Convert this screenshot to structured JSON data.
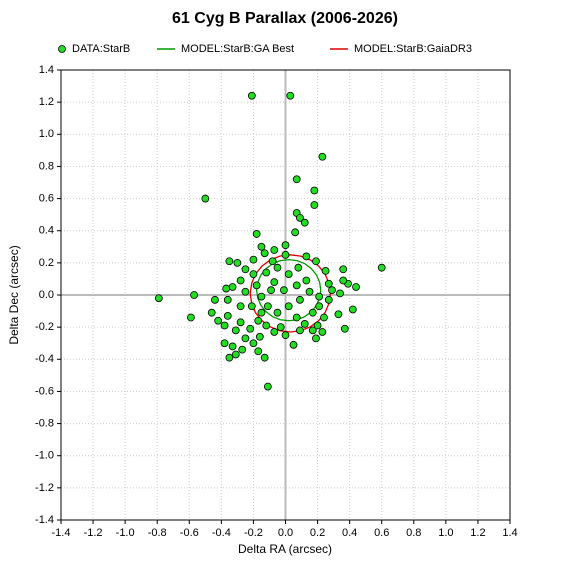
{
  "chart_data": {
    "type": "scatter",
    "title": "61 Cyg B Parallax (2006-2026)",
    "x_label": "Delta RA (arcsec)",
    "y_label": "Delta Dec (arcsec)",
    "xlim": [
      -1.4,
      1.4
    ],
    "ylim": [
      -1.4,
      1.4
    ],
    "xticks": [
      -1.4,
      -1.2,
      {
        "value": -1.0,
        "label": "-1.0"
      },
      -0.8,
      -0.6,
      -0.4,
      -0.2,
      {
        "value": 0.0,
        "label": "0.0"
      },
      0.2,
      0.4,
      0.6,
      0.8,
      {
        "value": 1.0,
        "label": "1.0"
      },
      1.2,
      1.4
    ],
    "yticks": [
      -1.4,
      -1.2,
      {
        "value": -1.0,
        "label": "-1.0"
      },
      -0.8,
      -0.6,
      -0.4,
      -0.2,
      {
        "value": 0.0,
        "label": "0.0"
      },
      0.2,
      0.4,
      0.6,
      0.8,
      {
        "value": 1.0,
        "label": "1.0"
      },
      1.2,
      1.4
    ],
    "grid": true,
    "legend": "top",
    "series": [
      {
        "name": "DATA:StarB",
        "type": "scatter",
        "color": "#22dd22",
        "x": [
          -0.21,
          0.03,
          0.23,
          0.07,
          0.18,
          -0.5,
          0.18,
          0.07,
          0.09,
          0.12,
          0.06,
          -0.18,
          -0.35,
          -0.3,
          0.6,
          0.36,
          -0.79,
          -0.57,
          -0.59,
          -0.46,
          0.39,
          0.44,
          0.34,
          0.42,
          0.37,
          -0.11,
          0.05,
          -0.13,
          -0.35,
          -0.33,
          -0.38,
          -0.27,
          -0.2,
          -0.16,
          -0.25,
          -0.31,
          -0.38,
          -0.42,
          -0.36,
          -0.28,
          -0.22,
          -0.17,
          -0.12,
          -0.07,
          -0.03,
          0.19,
          0.23,
          0.17,
          0.2,
          0.12,
          0.07,
          0.17,
          0.21,
          0.27,
          0.29,
          0.27,
          0.25,
          0.19,
          0.13,
          0.08,
          0.0,
          -0.07,
          -0.13,
          -0.2,
          -0.25,
          -0.28,
          -0.33,
          -0.36,
          -0.25,
          -0.18,
          -0.15,
          -0.11,
          -0.05,
          0.02,
          0.09,
          0.15,
          0.13,
          0.07,
          -0.01,
          -0.07,
          -0.12,
          -0.05,
          0.02,
          -0.21,
          -0.28,
          -0.37,
          -0.44,
          -0.09,
          0.09,
          0.0,
          -0.15,
          -0.2,
          -0.15,
          0.0,
          -0.08,
          0.24,
          0.33,
          0.36,
          0.21,
          -0.31,
          -0.17
        ],
        "y": [
          1.24,
          1.24,
          0.86,
          0.72,
          0.65,
          0.6,
          0.56,
          0.51,
          0.48,
          0.45,
          0.39,
          0.38,
          0.21,
          0.2,
          0.17,
          0.16,
          -0.02,
          0.0,
          -0.14,
          -0.11,
          0.07,
          0.05,
          0.01,
          -0.09,
          -0.21,
          -0.57,
          -0.31,
          -0.39,
          -0.39,
          -0.32,
          -0.3,
          -0.34,
          -0.3,
          -0.26,
          -0.27,
          -0.22,
          -0.19,
          -0.16,
          -0.13,
          -0.17,
          -0.21,
          -0.16,
          -0.19,
          -0.23,
          -0.2,
          -0.27,
          -0.23,
          -0.22,
          -0.19,
          -0.18,
          -0.14,
          -0.11,
          -0.07,
          -0.03,
          0.03,
          0.07,
          0.15,
          0.21,
          0.24,
          0.17,
          0.25,
          0.28,
          0.26,
          0.22,
          0.16,
          0.09,
          0.05,
          -0.03,
          0.02,
          0.06,
          -0.01,
          -0.07,
          -0.11,
          -0.07,
          -0.03,
          0.02,
          0.09,
          0.06,
          0.03,
          0.08,
          0.14,
          0.17,
          0.13,
          -0.07,
          -0.07,
          0.04,
          -0.03,
          0.03,
          -0.22,
          -0.25,
          -0.11,
          0.13,
          0.3,
          0.31,
          0.21,
          -0.14,
          -0.12,
          0.09,
          -0.01,
          -0.37,
          -0.35
        ]
      },
      {
        "name": "MODEL:StarB:GA Best",
        "type": "line",
        "color": "#009900",
        "x": [
          0.22,
          0.213,
          0.193,
          0.161,
          0.12,
          0.072,
          0.02,
          -0.032,
          -0.08,
          -0.121,
          -0.153,
          -0.173,
          -0.18,
          -0.173,
          -0.153,
          -0.121,
          -0.08,
          -0.032,
          0.02,
          0.072,
          0.12,
          0.161,
          0.193,
          0.213,
          0.22
        ],
        "y": [
          0.03,
          0.079,
          0.125,
          0.164,
          0.195,
          0.214,
          0.22,
          0.214,
          0.195,
          0.164,
          0.125,
          0.079,
          0.03,
          -0.019,
          -0.065,
          -0.104,
          -0.135,
          -0.154,
          -0.16,
          -0.154,
          -0.135,
          -0.104,
          -0.065,
          -0.019,
          0.03
        ]
      },
      {
        "name": "MODEL:StarB:GaiaDR3",
        "type": "line",
        "color": "#dd0000",
        "x": [
          0.28,
          0.271,
          0.247,
          0.207,
          0.155,
          0.095,
          0.03,
          -0.035,
          -0.095,
          -0.147,
          -0.187,
          -0.211,
          -0.22,
          -0.211,
          -0.187,
          -0.147,
          -0.095,
          -0.035,
          0.03,
          0.095,
          0.155,
          0.207,
          0.247,
          0.271,
          0.28
        ],
        "y": [
          0.01,
          0.072,
          0.13,
          0.18,
          0.218,
          0.242,
          0.25,
          0.242,
          0.218,
          0.18,
          0.13,
          0.072,
          0.01,
          -0.052,
          -0.11,
          -0.16,
          -0.198,
          -0.222,
          -0.23,
          -0.222,
          -0.198,
          -0.16,
          -0.11,
          -0.052,
          0.01
        ]
      }
    ]
  }
}
